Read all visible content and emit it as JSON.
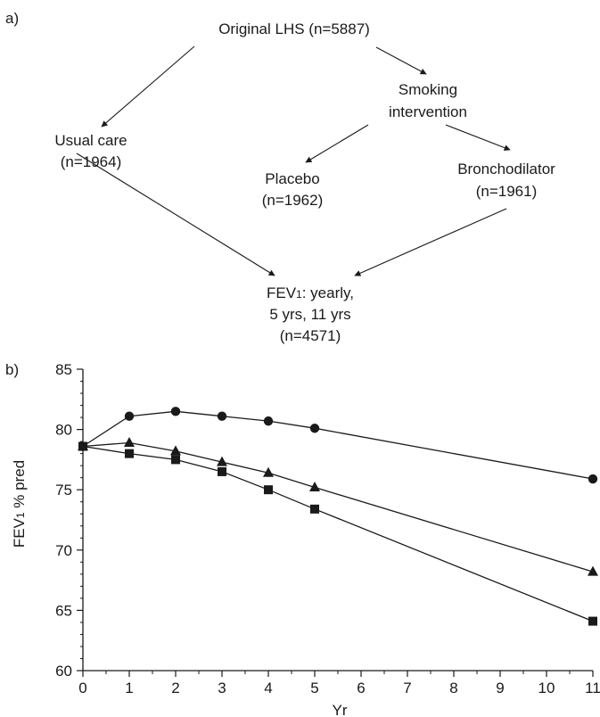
{
  "panel_a": {
    "label": "a)",
    "nodes": {
      "original": {
        "lines": [
          "Original LHS (n=5887)"
        ]
      },
      "smoking": {
        "lines": [
          "Smoking",
          "intervention"
        ]
      },
      "usual": {
        "lines": [
          "Usual care",
          "(n=1964)"
        ]
      },
      "placebo": {
        "lines": [
          "Placebo",
          "(n=1962)"
        ]
      },
      "broncho": {
        "lines": [
          "Bronchodilator",
          "(n=1961)"
        ]
      },
      "fev": {
        "line1_main": "FEV",
        "line1_sub": "1",
        "line1_rest": ": yearly,",
        "lines": [
          "5 yrs, 11 yrs",
          "(n=4571)"
        ]
      }
    }
  },
  "panel_b": {
    "label": "b)"
  },
  "chart_data": {
    "type": "line",
    "xlabel": "Yr",
    "ylabel_main": "FEV",
    "ylabel_sub": "1",
    "ylabel_rest": " % pred",
    "xlim": [
      0,
      11
    ],
    "ylim": [
      60,
      85
    ],
    "xticks": [
      0,
      1,
      2,
      3,
      4,
      5,
      6,
      7,
      8,
      9,
      10,
      11
    ],
    "yticks": [
      60,
      65,
      70,
      75,
      80,
      85
    ],
    "series": [
      {
        "marker": "circle",
        "x": [
          0,
          1,
          2,
          3,
          4,
          5,
          11
        ],
        "y": [
          78.6,
          81.1,
          81.5,
          81.1,
          80.7,
          80.1,
          75.9
        ]
      },
      {
        "marker": "triangle",
        "x": [
          0,
          1,
          2,
          3,
          4,
          5,
          11
        ],
        "y": [
          78.6,
          78.9,
          78.2,
          77.3,
          76.4,
          75.2,
          68.2
        ]
      },
      {
        "marker": "square",
        "x": [
          0,
          1,
          2,
          3,
          4,
          5,
          11
        ],
        "y": [
          78.6,
          78.0,
          77.5,
          76.5,
          75.0,
          73.4,
          64.1
        ]
      }
    ]
  }
}
